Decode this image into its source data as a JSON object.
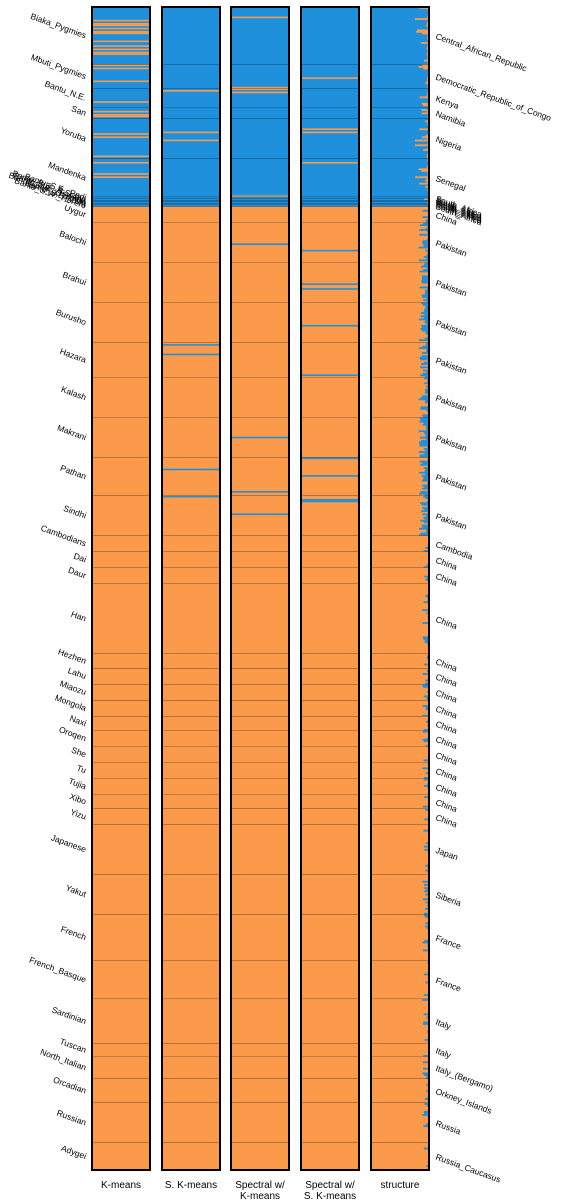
{
  "chart_data": {
    "type": "structure-bar",
    "colors": {
      "cluster_a": "#1e90dc",
      "cluster_b": "#fb9a4b"
    },
    "methods": [
      {
        "name": "K-means",
        "label_lines": [
          "K-means"
        ]
      },
      {
        "name": "S. K-means",
        "label_lines": [
          "S. K-means"
        ]
      },
      {
        "name": "Spectral w/ K-means",
        "label_lines": [
          "Spectral w/",
          "K-means"
        ]
      },
      {
        "name": "Spectral w/ S. K-means",
        "label_lines": [
          "Spectral w/",
          "S. K-means"
        ]
      },
      {
        "name": "structure",
        "label_lines": [
          "structure"
        ]
      }
    ],
    "populations": [
      {
        "name": "Biaka_Pygmies",
        "country": "Central_African_Republic",
        "n": 36,
        "region": "africa"
      },
      {
        "name": "Mbuti_Pygmies",
        "country": "Democratic_Republic_of_Congo",
        "n": 15,
        "region": "africa"
      },
      {
        "name": "Bantu_N.E.",
        "country": "Kenya",
        "n": 12,
        "region": "africa"
      },
      {
        "name": "San",
        "country": "Namibia",
        "n": 7,
        "region": "africa"
      },
      {
        "name": "Yoruba",
        "country": "Nigeria",
        "n": 25,
        "region": "africa"
      },
      {
        "name": "Mandenka",
        "country": "Senegal",
        "n": 24,
        "region": "africa"
      },
      {
        "name": "Bantu_S.E._Pedi",
        "country": "South_Africa",
        "n": 1,
        "region": "africa"
      },
      {
        "name": "Bantu_S.E._S.Sotho",
        "country": "South_Africa",
        "n": 1,
        "region": "africa"
      },
      {
        "name": "Bantu_S.E._Tswana",
        "country": "South_Africa",
        "n": 1,
        "region": "africa"
      },
      {
        "name": "Bantu_S.W._Ovambo",
        "country": "South_Africa",
        "n": 1,
        "region": "africa"
      },
      {
        "name": "Bantu_S.E._Zulu",
        "country": "South_Africa",
        "n": 1,
        "region": "africa"
      },
      {
        "name": "Bantu_S.W._Herero",
        "country": "South_Africa",
        "n": 1,
        "region": "africa"
      },
      {
        "name": "Uygur",
        "country": "China",
        "n": 10,
        "region": "other"
      },
      {
        "name": "Balochi",
        "country": "Pakistan",
        "n": 25,
        "region": "pakistan"
      },
      {
        "name": "Brahui",
        "country": "Pakistan",
        "n": 25,
        "region": "pakistan"
      },
      {
        "name": "Burusho",
        "country": "Pakistan",
        "n": 25,
        "region": "pakistan"
      },
      {
        "name": "Hazara",
        "country": "Pakistan",
        "n": 22,
        "region": "pakistan"
      },
      {
        "name": "Kalash",
        "country": "Pakistan",
        "n": 25,
        "region": "pakistan"
      },
      {
        "name": "Makrani",
        "country": "Pakistan",
        "n": 25,
        "region": "pakistan"
      },
      {
        "name": "Pathan",
        "country": "Pakistan",
        "n": 24,
        "region": "pakistan"
      },
      {
        "name": "Sindhi",
        "country": "Pakistan",
        "n": 25,
        "region": "pakistan"
      },
      {
        "name": "Cambodians",
        "country": "Cambodia",
        "n": 10,
        "region": "other"
      },
      {
        "name": "Dai",
        "country": "China",
        "n": 10,
        "region": "other"
      },
      {
        "name": "Daur",
        "country": "China",
        "n": 10,
        "region": "other"
      },
      {
        "name": "Han",
        "country": "China",
        "n": 44,
        "region": "other"
      },
      {
        "name": "Hezhen",
        "country": "China",
        "n": 9,
        "region": "other"
      },
      {
        "name": "Lahu",
        "country": "China",
        "n": 10,
        "region": "other"
      },
      {
        "name": "Miaozu",
        "country": "China",
        "n": 10,
        "region": "other"
      },
      {
        "name": "Mongola",
        "country": "China",
        "n": 10,
        "region": "other"
      },
      {
        "name": "Naxi",
        "country": "China",
        "n": 9,
        "region": "other"
      },
      {
        "name": "Oroqen",
        "country": "China",
        "n": 10,
        "region": "other"
      },
      {
        "name": "She",
        "country": "China",
        "n": 10,
        "region": "other"
      },
      {
        "name": "Tu",
        "country": "China",
        "n": 10,
        "region": "other"
      },
      {
        "name": "Tujia",
        "country": "China",
        "n": 10,
        "region": "other"
      },
      {
        "name": "Xibo",
        "country": "China",
        "n": 9,
        "region": "other"
      },
      {
        "name": "Yizu",
        "country": "China",
        "n": 10,
        "region": "other"
      },
      {
        "name": "Japanese",
        "country": "Japan",
        "n": 31,
        "region": "other"
      },
      {
        "name": "Yakut",
        "country": "Siberia",
        "n": 25,
        "region": "other"
      },
      {
        "name": "French",
        "country": "France",
        "n": 29,
        "region": "other"
      },
      {
        "name": "French_Basque",
        "country": "France",
        "n": 24,
        "region": "other"
      },
      {
        "name": "Sardinian",
        "country": "Italy",
        "n": 28,
        "region": "other"
      },
      {
        "name": "Tuscan",
        "country": "Italy",
        "n": 8,
        "region": "other"
      },
      {
        "name": "North_Italian",
        "country": "Italy_(Bergamo)",
        "n": 14,
        "region": "other"
      },
      {
        "name": "Orcadian",
        "country": "Orkney_Islands",
        "n": 15,
        "region": "other"
      },
      {
        "name": "Russian",
        "country": "Russia",
        "n": 25,
        "region": "other"
      },
      {
        "name": "Adygei",
        "country": "Russia_Caucasus",
        "n": 17,
        "region": "other"
      }
    ]
  }
}
